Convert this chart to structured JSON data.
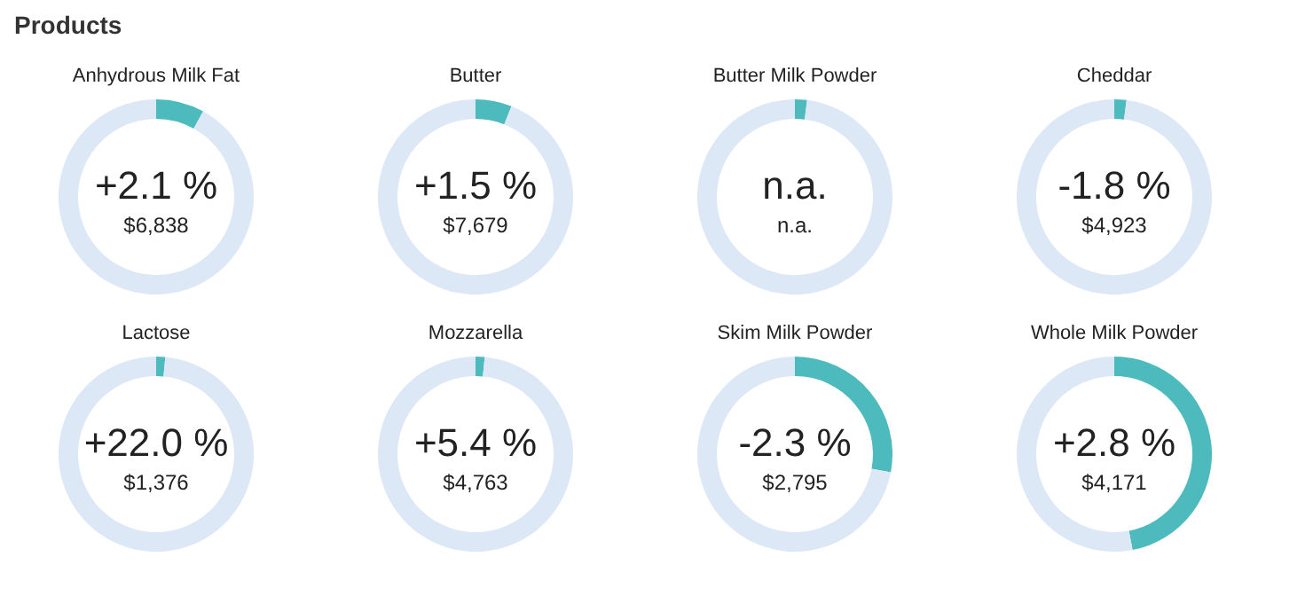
{
  "chart_data": [
    {
      "type": "other",
      "title": "Products"
    },
    {
      "type": "donut",
      "title": "Anhydrous Milk Fat",
      "categories": [
        null,
        null
      ],
      "values": [
        8,
        92
      ],
      "colors": [
        "#4dbbbd",
        "#dce8f5"
      ],
      "annotations": [
        "+2.1 %",
        "$6,838"
      ]
    },
    {
      "type": "donut",
      "title": "Butter",
      "categories": [
        null,
        null
      ],
      "values": [
        6,
        94
      ],
      "colors": [
        "#4dbbbd",
        "#dce8f5"
      ],
      "annotations": [
        "+1.5 %",
        "$7,679"
      ]
    },
    {
      "type": "donut",
      "title": "Butter Milk Powder",
      "categories": [
        null,
        null
      ],
      "values": [
        2,
        98
      ],
      "colors": [
        "#4dbbbd",
        "#dce8f5"
      ],
      "annotations": [
        "n.a.",
        "n.a."
      ]
    },
    {
      "type": "donut",
      "title": "Cheddar",
      "categories": [
        null,
        null
      ],
      "values": [
        2,
        98
      ],
      "colors": [
        "#4dbbbd",
        "#dce8f5"
      ],
      "annotations": [
        "-1.8 %",
        "$4,923"
      ]
    },
    {
      "type": "donut",
      "title": "Lactose",
      "categories": [
        null,
        null
      ],
      "values": [
        1.5,
        98.5
      ],
      "colors": [
        "#4dbbbd",
        "#dce8f5"
      ],
      "annotations": [
        "+22.0 %",
        "$1,376"
      ]
    },
    {
      "type": "donut",
      "title": "Mozzarella",
      "categories": [
        null,
        null
      ],
      "values": [
        1.5,
        98.5
      ],
      "colors": [
        "#4dbbbd",
        "#dce8f5"
      ],
      "annotations": [
        "+5.4 %",
        "$4,763"
      ]
    },
    {
      "type": "donut",
      "title": "Skim Milk Powder",
      "categories": [
        null,
        null
      ],
      "values": [
        28,
        72
      ],
      "colors": [
        "#4dbbbd",
        "#dce8f5"
      ],
      "annotations": [
        "-2.3 %",
        "$2,795"
      ]
    },
    {
      "type": "donut",
      "title": "Whole Milk Powder",
      "categories": [
        null,
        null
      ],
      "values": [
        47,
        53
      ],
      "colors": [
        "#4dbbbd",
        "#dce8f5"
      ],
      "annotations": [
        "+2.8 %",
        "$4,171"
      ]
    }
  ]
}
